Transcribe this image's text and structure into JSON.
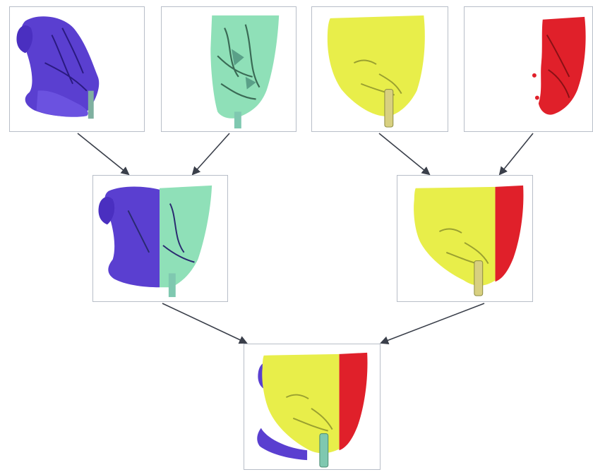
{
  "diagram": {
    "type": "merge-tree",
    "nodes": [
      {
        "id": "purple",
        "level": 1,
        "colors": [
          "#5a3fd0"
        ],
        "icon": "purple-head-segment"
      },
      {
        "id": "green",
        "level": 1,
        "colors": [
          "#8fe0b8"
        ],
        "icon": "green-head-segment"
      },
      {
        "id": "yellow",
        "level": 1,
        "colors": [
          "#e8ee4a"
        ],
        "icon": "yellow-face-segment"
      },
      {
        "id": "red",
        "level": 1,
        "colors": [
          "#e0202a"
        ],
        "icon": "red-face-segment"
      },
      {
        "id": "merge-purple-green",
        "level": 2,
        "colors": [
          "#5a3fd0",
          "#8fe0b8"
        ],
        "icon": "merged-purple-green-head"
      },
      {
        "id": "merge-yellow-red",
        "level": 2,
        "colors": [
          "#e8ee4a",
          "#e0202a"
        ],
        "icon": "merged-yellow-red-face"
      },
      {
        "id": "final",
        "level": 3,
        "colors": [
          "#5a3fd0",
          "#e8ee4a",
          "#e0202a"
        ],
        "icon": "final-merged-head"
      }
    ],
    "edges": [
      {
        "from": "purple",
        "to": "merge-purple-green"
      },
      {
        "from": "green",
        "to": "merge-purple-green"
      },
      {
        "from": "yellow",
        "to": "merge-yellow-red"
      },
      {
        "from": "red",
        "to": "merge-yellow-red"
      },
      {
        "from": "merge-purple-green",
        "to": "final"
      },
      {
        "from": "merge-yellow-red",
        "to": "final"
      }
    ],
    "colors": {
      "arrow": "#3a3f4a",
      "panel_border": "#b8bec8"
    }
  }
}
